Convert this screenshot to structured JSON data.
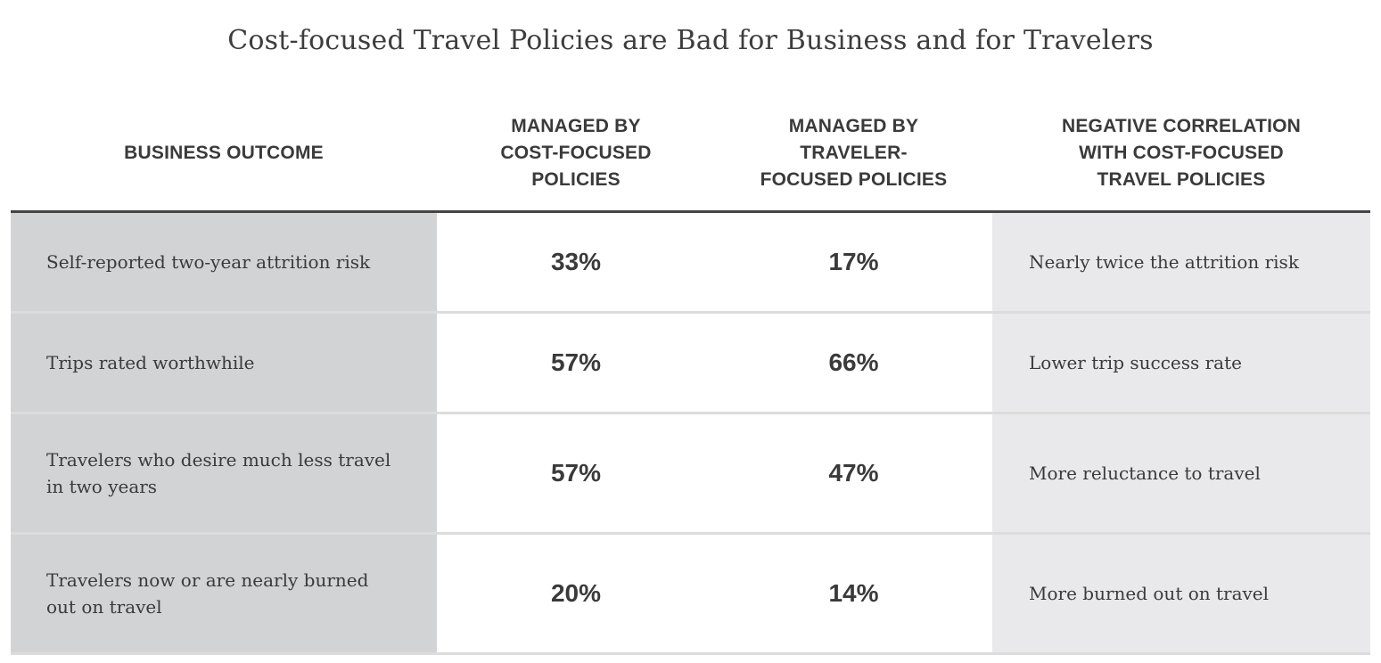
{
  "chart_data": {
    "type": "table",
    "title": "Cost-focused Travel Policies are Bad for Business and for Travelers",
    "columns": [
      "BUSINESS OUTCOME",
      "MANAGED BY COST-FOCUSED POLICIES",
      "MANAGED BY TRAVELER-FOCUSED POLICIES",
      "NEGATIVE CORRELATION WITH COST-FOCUSED TRAVEL POLICIES"
    ],
    "header_lines": [
      [
        "BUSINESS OUTCOME"
      ],
      [
        "MANAGED BY",
        "COST-FOCUSED",
        "POLICIES"
      ],
      [
        "MANAGED BY",
        "TRAVELER-",
        "FOCUSED POLICIES"
      ],
      [
        "NEGATIVE CORRELATION",
        "WITH COST-FOCUSED",
        "TRAVEL POLICIES"
      ]
    ],
    "rows": [
      {
        "outcome": "Self-reported two-year attrition risk",
        "cost_focused": "33%",
        "traveler_focused": "17%",
        "correlation": "Nearly twice the attrition risk"
      },
      {
        "outcome": "Trips rated worthwhile",
        "cost_focused": "57%",
        "traveler_focused": "66%",
        "correlation": "Lower trip success rate"
      },
      {
        "outcome": "Travelers who desire much less travel in two years",
        "cost_focused": "57%",
        "traveler_focused": "47%",
        "correlation": "More reluctance to travel"
      },
      {
        "outcome": "Travelers now or are nearly burned out on travel",
        "cost_focused": "20%",
        "traveler_focused": "14%",
        "correlation": "More burned out on travel"
      }
    ],
    "series": [
      {
        "name": "MANAGED BY COST-FOCUSED POLICIES",
        "values": [
          33,
          57,
          57,
          20
        ]
      },
      {
        "name": "MANAGED BY TRAVELER-FOCUSED POLICIES",
        "values": [
          17,
          66,
          47,
          14
        ]
      }
    ]
  },
  "colors": {
    "outcome_bg": "#d2d3d5",
    "value_bg": "#ffffff",
    "correlation_bg": "#e9e9eb",
    "text": "#3a3a3a",
    "header_rule": "#444444",
    "row_rule": "#dcdcdc"
  }
}
